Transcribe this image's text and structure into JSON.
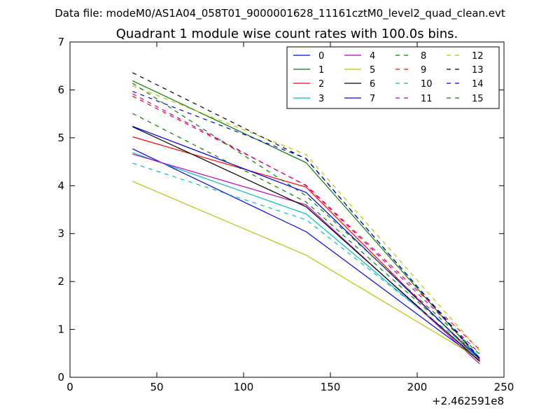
{
  "chart_data": {
    "type": "line",
    "suptitle": "Data file: modeM0/AS1A04_058T01_9000001628_11161cztM0_level2_quad_clean.evt",
    "title": "Quadrant 1 module wise count rates with 100.0s bins.",
    "xlabel": "",
    "ylabel": "",
    "x_offset_label": "+2.462591e8",
    "xlim": [
      0,
      250
    ],
    "ylim": [
      0,
      7
    ],
    "xticks": [
      0,
      50,
      100,
      150,
      200,
      250
    ],
    "yticks": [
      0,
      1,
      2,
      3,
      4,
      5,
      6,
      7
    ],
    "grid": false,
    "legend": {
      "position": "top-right",
      "columns": 4
    },
    "x": [
      36,
      136,
      236
    ],
    "series": [
      {
        "name": "0",
        "color": "#0000ff",
        "dash": "solid",
        "values": [
          4.77,
          3.04,
          0.35
        ]
      },
      {
        "name": "1",
        "color": "#008000",
        "dash": "solid",
        "values": [
          6.19,
          4.48,
          0.38
        ]
      },
      {
        "name": "2",
        "color": "#ff0000",
        "dash": "solid",
        "values": [
          5.02,
          3.97,
          0.34
        ]
      },
      {
        "name": "3",
        "color": "#00bfbf",
        "dash": "solid",
        "values": [
          4.69,
          3.41,
          0.37
        ]
      },
      {
        "name": "4",
        "color": "#bf00bf",
        "dash": "solid",
        "values": [
          4.66,
          3.6,
          0.28
        ]
      },
      {
        "name": "5",
        "color": "#bfbf00",
        "dash": "solid",
        "values": [
          4.09,
          2.55,
          0.38
        ]
      },
      {
        "name": "6",
        "color": "#000000",
        "dash": "solid",
        "values": [
          5.23,
          3.56,
          0.33
        ]
      },
      {
        "name": "7",
        "color": "#0000ff",
        "dash": "solid",
        "values": [
          5.24,
          3.86,
          0.38
        ]
      },
      {
        "name": "8",
        "color": "#008000",
        "dash": "dashed",
        "values": [
          5.51,
          3.66,
          0.42
        ]
      },
      {
        "name": "9",
        "color": "#ff0000",
        "dash": "dashed",
        "values": [
          5.87,
          4.01,
          0.58
        ]
      },
      {
        "name": "10",
        "color": "#00bfbf",
        "dash": "dashed",
        "values": [
          4.47,
          3.29,
          0.44
        ]
      },
      {
        "name": "11",
        "color": "#bf00bf",
        "dash": "dashed",
        "values": [
          5.92,
          4.0,
          0.5
        ]
      },
      {
        "name": "12",
        "color": "#bfbf00",
        "dash": "dashed",
        "values": [
          6.09,
          4.65,
          0.55
        ]
      },
      {
        "name": "13",
        "color": "#000000",
        "dash": "dashed",
        "values": [
          6.36,
          4.56,
          0.4
        ]
      },
      {
        "name": "14",
        "color": "#0000ff",
        "dash": "dashed",
        "values": [
          5.97,
          4.57,
          0.38
        ]
      },
      {
        "name": "15",
        "color": "#008000",
        "dash": "dashed",
        "values": [
          6.14,
          3.79,
          0.48
        ]
      }
    ]
  }
}
